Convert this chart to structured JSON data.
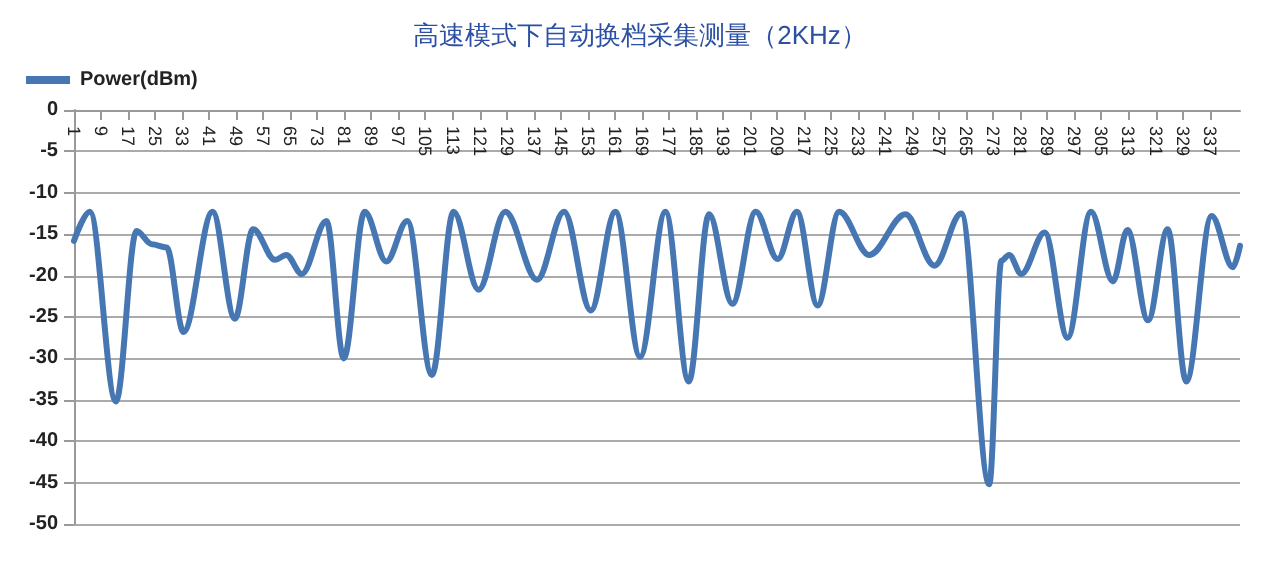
{
  "chart_data": {
    "type": "line",
    "title": "高速模式下自动换档采集测量（2KHz）",
    "x": [
      1,
      5.7,
      13.4,
      19.5,
      24,
      28.4,
      33.4,
      42,
      48.6,
      54,
      60.5,
      63.8,
      68.4,
      75.7,
      80.8,
      87,
      93.4,
      99.6,
      106.9,
      113.3,
      120.7,
      128.6,
      138,
      146,
      153.9,
      161.2,
      168.5,
      176,
      182.9,
      188.9,
      195.8,
      202.7,
      209.2,
      214.9,
      221,
      227.4,
      236.3,
      247,
      255.6,
      263.5,
      271.8,
      275.4,
      277.7,
      281.3,
      288.2,
      295,
      301.9,
      308.4,
      312.7,
      318.8,
      324.6,
      330.1,
      337.6,
      343.9,
      346
    ],
    "series": [
      {
        "name": "Power(dBm)",
        "color": "#4677b3",
        "values": [
          -15.8,
          -12.3,
          -35.2,
          -14.6,
          -16.2,
          -16.6,
          -26.8,
          -12.3,
          -25.2,
          -14.4,
          -18.1,
          -17.5,
          -19.8,
          -13.4,
          -30,
          -12.3,
          -18.3,
          -13.4,
          -32,
          -12.3,
          -21.7,
          -12.3,
          -20.5,
          -12.3,
          -24.2,
          -12.3,
          -29.8,
          -12.3,
          -32.8,
          -12.6,
          -23.4,
          -12.3,
          -18,
          -12.3,
          -23.6,
          -12.3,
          -17.5,
          -12.6,
          -18.8,
          -12.5,
          -45.2,
          -18.2,
          -17.5,
          -19.8,
          -14.8,
          -27.5,
          -12.3,
          -20.7,
          -14.5,
          -25.4,
          -14.4,
          -32.8,
          -12.8,
          -19,
          -16.4
        ]
      }
    ],
    "xlim": [
      1,
      346
    ],
    "xticks": [
      1,
      9,
      17,
      25,
      33,
      41,
      49,
      57,
      65,
      73,
      81,
      89,
      97,
      105,
      113,
      121,
      129,
      137,
      145,
      153,
      161,
      169,
      177,
      185,
      193,
      201,
      209,
      217,
      225,
      233,
      241,
      249,
      257,
      265,
      273,
      281,
      289,
      297,
      305,
      313,
      321,
      329,
      337
    ],
    "ylim": [
      -50,
      0
    ],
    "yticks": [
      -50,
      -45,
      -40,
      -35,
      -30,
      -25,
      -20,
      -15,
      -10,
      -5,
      0
    ],
    "grid": "y",
    "legend": "top left",
    "marker": "none",
    "line_style": "solid"
  }
}
